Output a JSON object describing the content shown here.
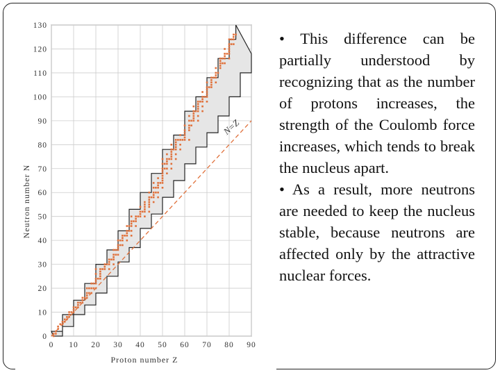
{
  "slide": {
    "bullets": [
      "• This difference can be partially understood by recognizing that as the number of protons increases, the strength of the Coulomb force increases, which tends to break the nucleus apart.",
      "• As a result, more neutrons are needed to keep the nucleus stable, because neutrons are affected only by the attractive nuclear forces."
    ]
  },
  "chart_data": {
    "type": "scatter",
    "title": "",
    "xlabel": "Proton number Z",
    "ylabel": "Neutron number N",
    "xlim": [
      0,
      90
    ],
    "ylim": [
      0,
      130
    ],
    "xticks": [
      0,
      10,
      20,
      30,
      40,
      50,
      60,
      70,
      80,
      90
    ],
    "yticks": [
      0,
      10,
      20,
      30,
      40,
      50,
      60,
      70,
      80,
      90,
      100,
      110,
      120,
      130
    ],
    "grid": true,
    "line_label": "N=Z",
    "colors": {
      "points": "#e0703a",
      "band": "#e6e6e6",
      "band_edge": "#222222",
      "line": "#e0703a",
      "grid": "#cccccc"
    },
    "stability_band": {
      "upper": [
        [
          0,
          2
        ],
        [
          5,
          9
        ],
        [
          10,
          15
        ],
        [
          15,
          22
        ],
        [
          20,
          30
        ],
        [
          25,
          36
        ],
        [
          30,
          44
        ],
        [
          35,
          53
        ],
        [
          40,
          60
        ],
        [
          45,
          68
        ],
        [
          50,
          78
        ],
        [
          55,
          84
        ],
        [
          60,
          94
        ],
        [
          65,
          100
        ],
        [
          70,
          108
        ],
        [
          75,
          116
        ],
        [
          80,
          124
        ],
        [
          83,
          130
        ]
      ],
      "lower": [
        [
          1,
          0
        ],
        [
          5,
          4
        ],
        [
          10,
          9
        ],
        [
          15,
          13
        ],
        [
          20,
          18
        ],
        [
          25,
          25
        ],
        [
          30,
          31
        ],
        [
          35,
          37
        ],
        [
          40,
          45
        ],
        [
          45,
          51
        ],
        [
          50,
          58
        ],
        [
          55,
          65
        ],
        [
          60,
          72
        ],
        [
          65,
          79
        ],
        [
          70,
          85
        ],
        [
          75,
          92
        ],
        [
          80,
          100
        ],
        [
          85,
          110
        ],
        [
          90,
          118
        ]
      ]
    },
    "stable_nuclides": [
      [
        1,
        0
      ],
      [
        1,
        1
      ],
      [
        2,
        1
      ],
      [
        2,
        2
      ],
      [
        3,
        3
      ],
      [
        3,
        4
      ],
      [
        4,
        5
      ],
      [
        5,
        5
      ],
      [
        5,
        6
      ],
      [
        6,
        6
      ],
      [
        6,
        7
      ],
      [
        7,
        7
      ],
      [
        7,
        8
      ],
      [
        8,
        8
      ],
      [
        8,
        9
      ],
      [
        8,
        10
      ],
      [
        9,
        10
      ],
      [
        10,
        10
      ],
      [
        10,
        11
      ],
      [
        10,
        12
      ],
      [
        11,
        12
      ],
      [
        12,
        12
      ],
      [
        12,
        13
      ],
      [
        12,
        14
      ],
      [
        13,
        14
      ],
      [
        14,
        14
      ],
      [
        14,
        15
      ],
      [
        14,
        16
      ],
      [
        15,
        16
      ],
      [
        16,
        16
      ],
      [
        16,
        17
      ],
      [
        16,
        18
      ],
      [
        16,
        20
      ],
      [
        17,
        18
      ],
      [
        17,
        20
      ],
      [
        18,
        18
      ],
      [
        18,
        20
      ],
      [
        18,
        22
      ],
      [
        19,
        20
      ],
      [
        19,
        22
      ],
      [
        20,
        20
      ],
      [
        20,
        22
      ],
      [
        20,
        23
      ],
      [
        20,
        24
      ],
      [
        20,
        26
      ],
      [
        20,
        28
      ],
      [
        21,
        24
      ],
      [
        22,
        24
      ],
      [
        22,
        25
      ],
      [
        22,
        26
      ],
      [
        22,
        27
      ],
      [
        22,
        28
      ],
      [
        23,
        28
      ],
      [
        24,
        28
      ],
      [
        24,
        29
      ],
      [
        24,
        30
      ],
      [
        25,
        30
      ],
      [
        26,
        28
      ],
      [
        26,
        30
      ],
      [
        26,
        31
      ],
      [
        26,
        32
      ],
      [
        27,
        32
      ],
      [
        28,
        30
      ],
      [
        28,
        32
      ],
      [
        28,
        33
      ],
      [
        28,
        34
      ],
      [
        28,
        36
      ],
      [
        29,
        34
      ],
      [
        29,
        36
      ],
      [
        30,
        34
      ],
      [
        30,
        36
      ],
      [
        30,
        37
      ],
      [
        30,
        38
      ],
      [
        30,
        40
      ],
      [
        31,
        38
      ],
      [
        31,
        40
      ],
      [
        32,
        38
      ],
      [
        32,
        40
      ],
      [
        32,
        41
      ],
      [
        32,
        42
      ],
      [
        33,
        42
      ],
      [
        34,
        40
      ],
      [
        34,
        42
      ],
      [
        34,
        43
      ],
      [
        34,
        44
      ],
      [
        34,
        46
      ],
      [
        35,
        44
      ],
      [
        35,
        46
      ],
      [
        36,
        42
      ],
      [
        36,
        44
      ],
      [
        36,
        46
      ],
      [
        36,
        47
      ],
      [
        36,
        48
      ],
      [
        36,
        50
      ],
      [
        37,
        48
      ],
      [
        38,
        46
      ],
      [
        38,
        48
      ],
      [
        38,
        49
      ],
      [
        38,
        50
      ],
      [
        39,
        50
      ],
      [
        40,
        50
      ],
      [
        40,
        51
      ],
      [
        40,
        52
      ],
      [
        40,
        54
      ],
      [
        41,
        52
      ],
      [
        42,
        50
      ],
      [
        42,
        52
      ],
      [
        42,
        53
      ],
      [
        42,
        54
      ],
      [
        42,
        55
      ],
      [
        42,
        56
      ],
      [
        44,
        52
      ],
      [
        44,
        54
      ],
      [
        44,
        55
      ],
      [
        44,
        56
      ],
      [
        44,
        57
      ],
      [
        44,
        58
      ],
      [
        44,
        60
      ],
      [
        45,
        58
      ],
      [
        46,
        56
      ],
      [
        46,
        58
      ],
      [
        46,
        59
      ],
      [
        46,
        60
      ],
      [
        46,
        62
      ],
      [
        46,
        64
      ],
      [
        47,
        60
      ],
      [
        47,
        62
      ],
      [
        48,
        58
      ],
      [
        48,
        60
      ],
      [
        48,
        62
      ],
      [
        48,
        63
      ],
      [
        48,
        64
      ],
      [
        48,
        66
      ],
      [
        49,
        64
      ],
      [
        50,
        62
      ],
      [
        50,
        64
      ],
      [
        50,
        65
      ],
      [
        50,
        66
      ],
      [
        50,
        67
      ],
      [
        50,
        68
      ],
      [
        50,
        69
      ],
      [
        50,
        70
      ],
      [
        50,
        72
      ],
      [
        50,
        74
      ],
      [
        51,
        70
      ],
      [
        51,
        72
      ],
      [
        52,
        68
      ],
      [
        52,
        70
      ],
      [
        52,
        72
      ],
      [
        52,
        73
      ],
      [
        52,
        74
      ],
      [
        52,
        76
      ],
      [
        53,
        74
      ],
      [
        54,
        70
      ],
      [
        54,
        72
      ],
      [
        54,
        74
      ],
      [
        54,
        75
      ],
      [
        54,
        76
      ],
      [
        54,
        77
      ],
      [
        54,
        78
      ],
      [
        54,
        80
      ],
      [
        55,
        78
      ],
      [
        56,
        74
      ],
      [
        56,
        76
      ],
      [
        56,
        78
      ],
      [
        56,
        79
      ],
      [
        56,
        80
      ],
      [
        56,
        81
      ],
      [
        56,
        82
      ],
      [
        57,
        82
      ],
      [
        58,
        78
      ],
      [
        58,
        80
      ],
      [
        58,
        82
      ],
      [
        58,
        84
      ],
      [
        59,
        82
      ],
      [
        60,
        82
      ],
      [
        60,
        83
      ],
      [
        60,
        84
      ],
      [
        60,
        85
      ],
      [
        60,
        86
      ],
      [
        60,
        88
      ],
      [
        62,
        82
      ],
      [
        62,
        86
      ],
      [
        62,
        87
      ],
      [
        62,
        88
      ],
      [
        62,
        90
      ],
      [
        62,
        92
      ],
      [
        63,
        88
      ],
      [
        63,
        90
      ],
      [
        64,
        90
      ],
      [
        64,
        91
      ],
      [
        64,
        92
      ],
      [
        64,
        93
      ],
      [
        64,
        94
      ],
      [
        64,
        96
      ],
      [
        65,
        94
      ],
      [
        66,
        90
      ],
      [
        66,
        92
      ],
      [
        66,
        94
      ],
      [
        66,
        95
      ],
      [
        66,
        96
      ],
      [
        66,
        97
      ],
      [
        66,
        98
      ],
      [
        67,
        98
      ],
      [
        68,
        94
      ],
      [
        68,
        96
      ],
      [
        68,
        98
      ],
      [
        68,
        99
      ],
      [
        68,
        100
      ],
      [
        68,
        102
      ],
      [
        69,
        100
      ],
      [
        70,
        98
      ],
      [
        70,
        100
      ],
      [
        70,
        101
      ],
      [
        70,
        102
      ],
      [
        70,
        103
      ],
      [
        70,
        104
      ],
      [
        70,
        106
      ],
      [
        71,
        104
      ],
      [
        72,
        104
      ],
      [
        72,
        105
      ],
      [
        72,
        106
      ],
      [
        72,
        107
      ],
      [
        72,
        108
      ],
      [
        73,
        108
      ],
      [
        74,
        106
      ],
      [
        74,
        108
      ],
      [
        74,
        109
      ],
      [
        74,
        110
      ],
      [
        74,
        112
      ],
      [
        75,
        110
      ],
      [
        76,
        112
      ],
      [
        76,
        113
      ],
      [
        76,
        114
      ],
      [
        76,
        115
      ],
      [
        76,
        116
      ],
      [
        77,
        114
      ],
      [
        77,
        116
      ],
      [
        78,
        114
      ],
      [
        78,
        116
      ],
      [
        78,
        117
      ],
      [
        78,
        118
      ],
      [
        78,
        120
      ],
      [
        79,
        118
      ],
      [
        80,
        116
      ],
      [
        80,
        118
      ],
      [
        80,
        119
      ],
      [
        80,
        120
      ],
      [
        80,
        121
      ],
      [
        80,
        122
      ],
      [
        80,
        124
      ],
      [
        81,
        122
      ],
      [
        81,
        124
      ],
      [
        82,
        122
      ],
      [
        82,
        124
      ],
      [
        82,
        125
      ],
      [
        82,
        126
      ],
      [
        83,
        126
      ]
    ]
  }
}
